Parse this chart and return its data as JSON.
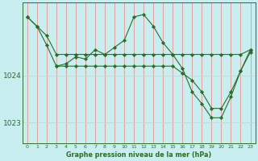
{
  "title": "Graphe pression niveau de la mer (hPa)",
  "bg_color": "#c8eef0",
  "grid_color_v": "#f08080",
  "grid_color_h": "#c0d8d8",
  "line_color": "#2d6b2d",
  "marker_color": "#2d6b2d",
  "x_ticks": [
    0,
    1,
    2,
    3,
    4,
    5,
    6,
    7,
    8,
    9,
    10,
    11,
    12,
    13,
    14,
    15,
    16,
    17,
    18,
    19,
    20,
    21,
    22,
    23
  ],
  "y_ticks": [
    1023,
    1024
  ],
  "ylim": [
    1022.55,
    1025.55
  ],
  "xlim": [
    -0.5,
    23.5
  ],
  "series": [
    {
      "x": [
        0,
        1,
        2,
        3,
        4,
        5,
        6,
        7,
        8,
        9,
        10,
        11,
        12,
        13,
        14,
        15,
        16,
        17,
        18,
        19,
        20,
        21,
        22,
        23
      ],
      "y": [
        1025.25,
        1025.05,
        1024.85,
        1024.45,
        1024.45,
        1024.45,
        1024.45,
        1024.45,
        1024.45,
        1024.45,
        1024.45,
        1024.45,
        1024.45,
        1024.45,
        1024.45,
        1024.45,
        1024.45,
        1024.45,
        1024.45,
        1024.45,
        1024.45,
        1024.45,
        1024.45,
        1024.55
      ]
    },
    {
      "x": [
        0,
        1,
        2,
        3,
        4,
        5,
        6,
        7,
        8,
        9,
        10,
        11,
        12,
        13,
        14,
        15,
        16,
        17,
        18,
        19,
        20,
        21,
        22,
        23
      ],
      "y": [
        1025.25,
        1025.05,
        1024.65,
        1024.2,
        1024.2,
        1024.2,
        1024.2,
        1024.2,
        1024.2,
        1024.2,
        1024.2,
        1024.2,
        1024.2,
        1024.2,
        1024.2,
        1024.2,
        1024.05,
        1023.9,
        1023.65,
        1023.3,
        1023.3,
        1023.65,
        1024.1,
        1024.5
      ]
    },
    {
      "x": [
        3,
        4,
        5,
        6,
        7,
        8,
        9,
        10,
        11,
        12,
        13,
        14,
        15,
        16,
        17,
        18,
        19,
        20,
        21,
        22,
        23
      ],
      "y": [
        1024.2,
        1024.25,
        1024.4,
        1024.35,
        1024.55,
        1024.45,
        1024.6,
        1024.75,
        1025.25,
        1025.3,
        1025.05,
        1024.7,
        1024.45,
        1024.15,
        1023.65,
        1023.4,
        1023.1,
        1023.1,
        1023.55,
        1024.1,
        1024.55
      ]
    }
  ]
}
